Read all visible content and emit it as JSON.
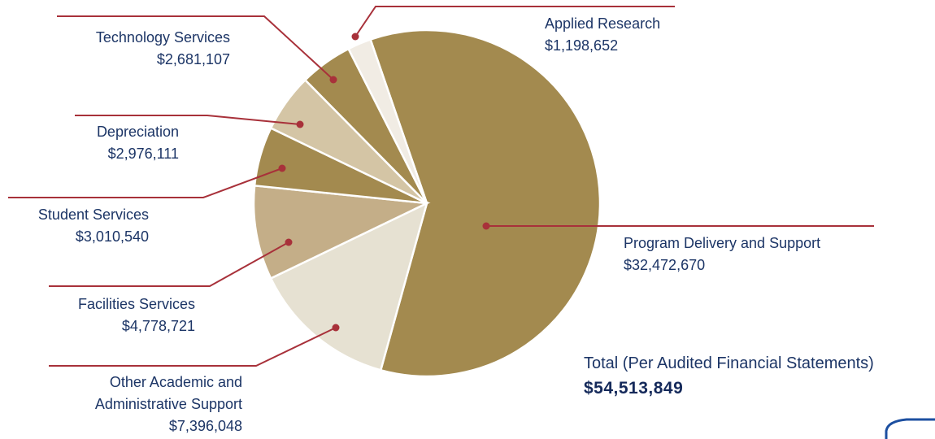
{
  "chart_data": {
    "type": "pie",
    "categories": [
      "Program Delivery and Support",
      "Other Academic and Administrative Support",
      "Facilities Services",
      "Student Services",
      "Depreciation",
      "Technology Services",
      "Applied Research"
    ],
    "values": [
      32472670,
      7396048,
      4778721,
      3010540,
      2976111,
      2681107,
      1198652
    ],
    "value_labels": [
      "$32,472,670",
      "$7,396,048",
      "$4,778,721",
      "$3,010,540",
      "$2,976,111",
      "$2,681,107",
      "$1,198,652"
    ],
    "colors": [
      "#a38a4f",
      "#e6e1d2",
      "#c4ae88",
      "#a38a4f",
      "#d4c5a5",
      "#a38a4f",
      "#f1ece4"
    ],
    "total_title": "Total (Per Audited Financial Statements)",
    "total": {
      "value": 54513849,
      "label": "$54,513,849"
    }
  }
}
